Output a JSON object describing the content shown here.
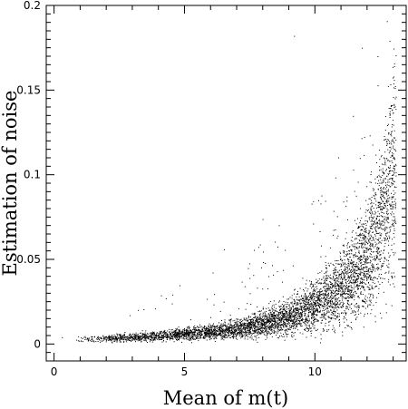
{
  "chart_data": {
    "type": "scatter",
    "title": "",
    "xlabel": "Mean of m(t)",
    "ylabel": "Estimation of noise",
    "xlim": [
      -0.3,
      13.5
    ],
    "ylim": [
      -0.01,
      0.2
    ],
    "grid": false,
    "legend": "none",
    "x_ticks": [
      0,
      5,
      10
    ],
    "x_tick_labels": [
      "0",
      "5",
      "10"
    ],
    "y_ticks": [
      0,
      0.05,
      0.1,
      0.15,
      0.2
    ],
    "y_tick_labels": [
      "0",
      "0.05",
      "0.1",
      "0.15",
      "0.2"
    ],
    "series": [
      {
        "marker_color": "#000000",
        "trend": {
          "description_points_x": [
            1,
            3,
            5,
            7,
            9,
            10,
            11,
            12,
            12.5,
            13
          ],
          "description_points_y": [
            0.003,
            0.004,
            0.006,
            0.009,
            0.016,
            0.023,
            0.033,
            0.05,
            0.07,
            0.1
          ]
        },
        "x": [
          0.3,
          2.0,
          3.0,
          4.0,
          5.0,
          6.0,
          7.0,
          8.0,
          9.0,
          9.5,
          10.0,
          10.5,
          11.0,
          11.5,
          12.0,
          12.3,
          12.6,
          12.9,
          13.0,
          9.2,
          11.8,
          12.4,
          12.8,
          7.5,
          6.5,
          3.5,
          2.9
        ],
        "values": [
          0.004,
          0.003,
          0.004,
          0.005,
          0.006,
          0.007,
          0.009,
          0.012,
          0.016,
          0.019,
          0.023,
          0.027,
          0.033,
          0.04,
          0.05,
          0.058,
          0.068,
          0.08,
          0.1,
          0.182,
          0.175,
          0.17,
          0.13,
          0.03,
          0.025,
          0.008,
          0.017
        ]
      }
    ]
  }
}
